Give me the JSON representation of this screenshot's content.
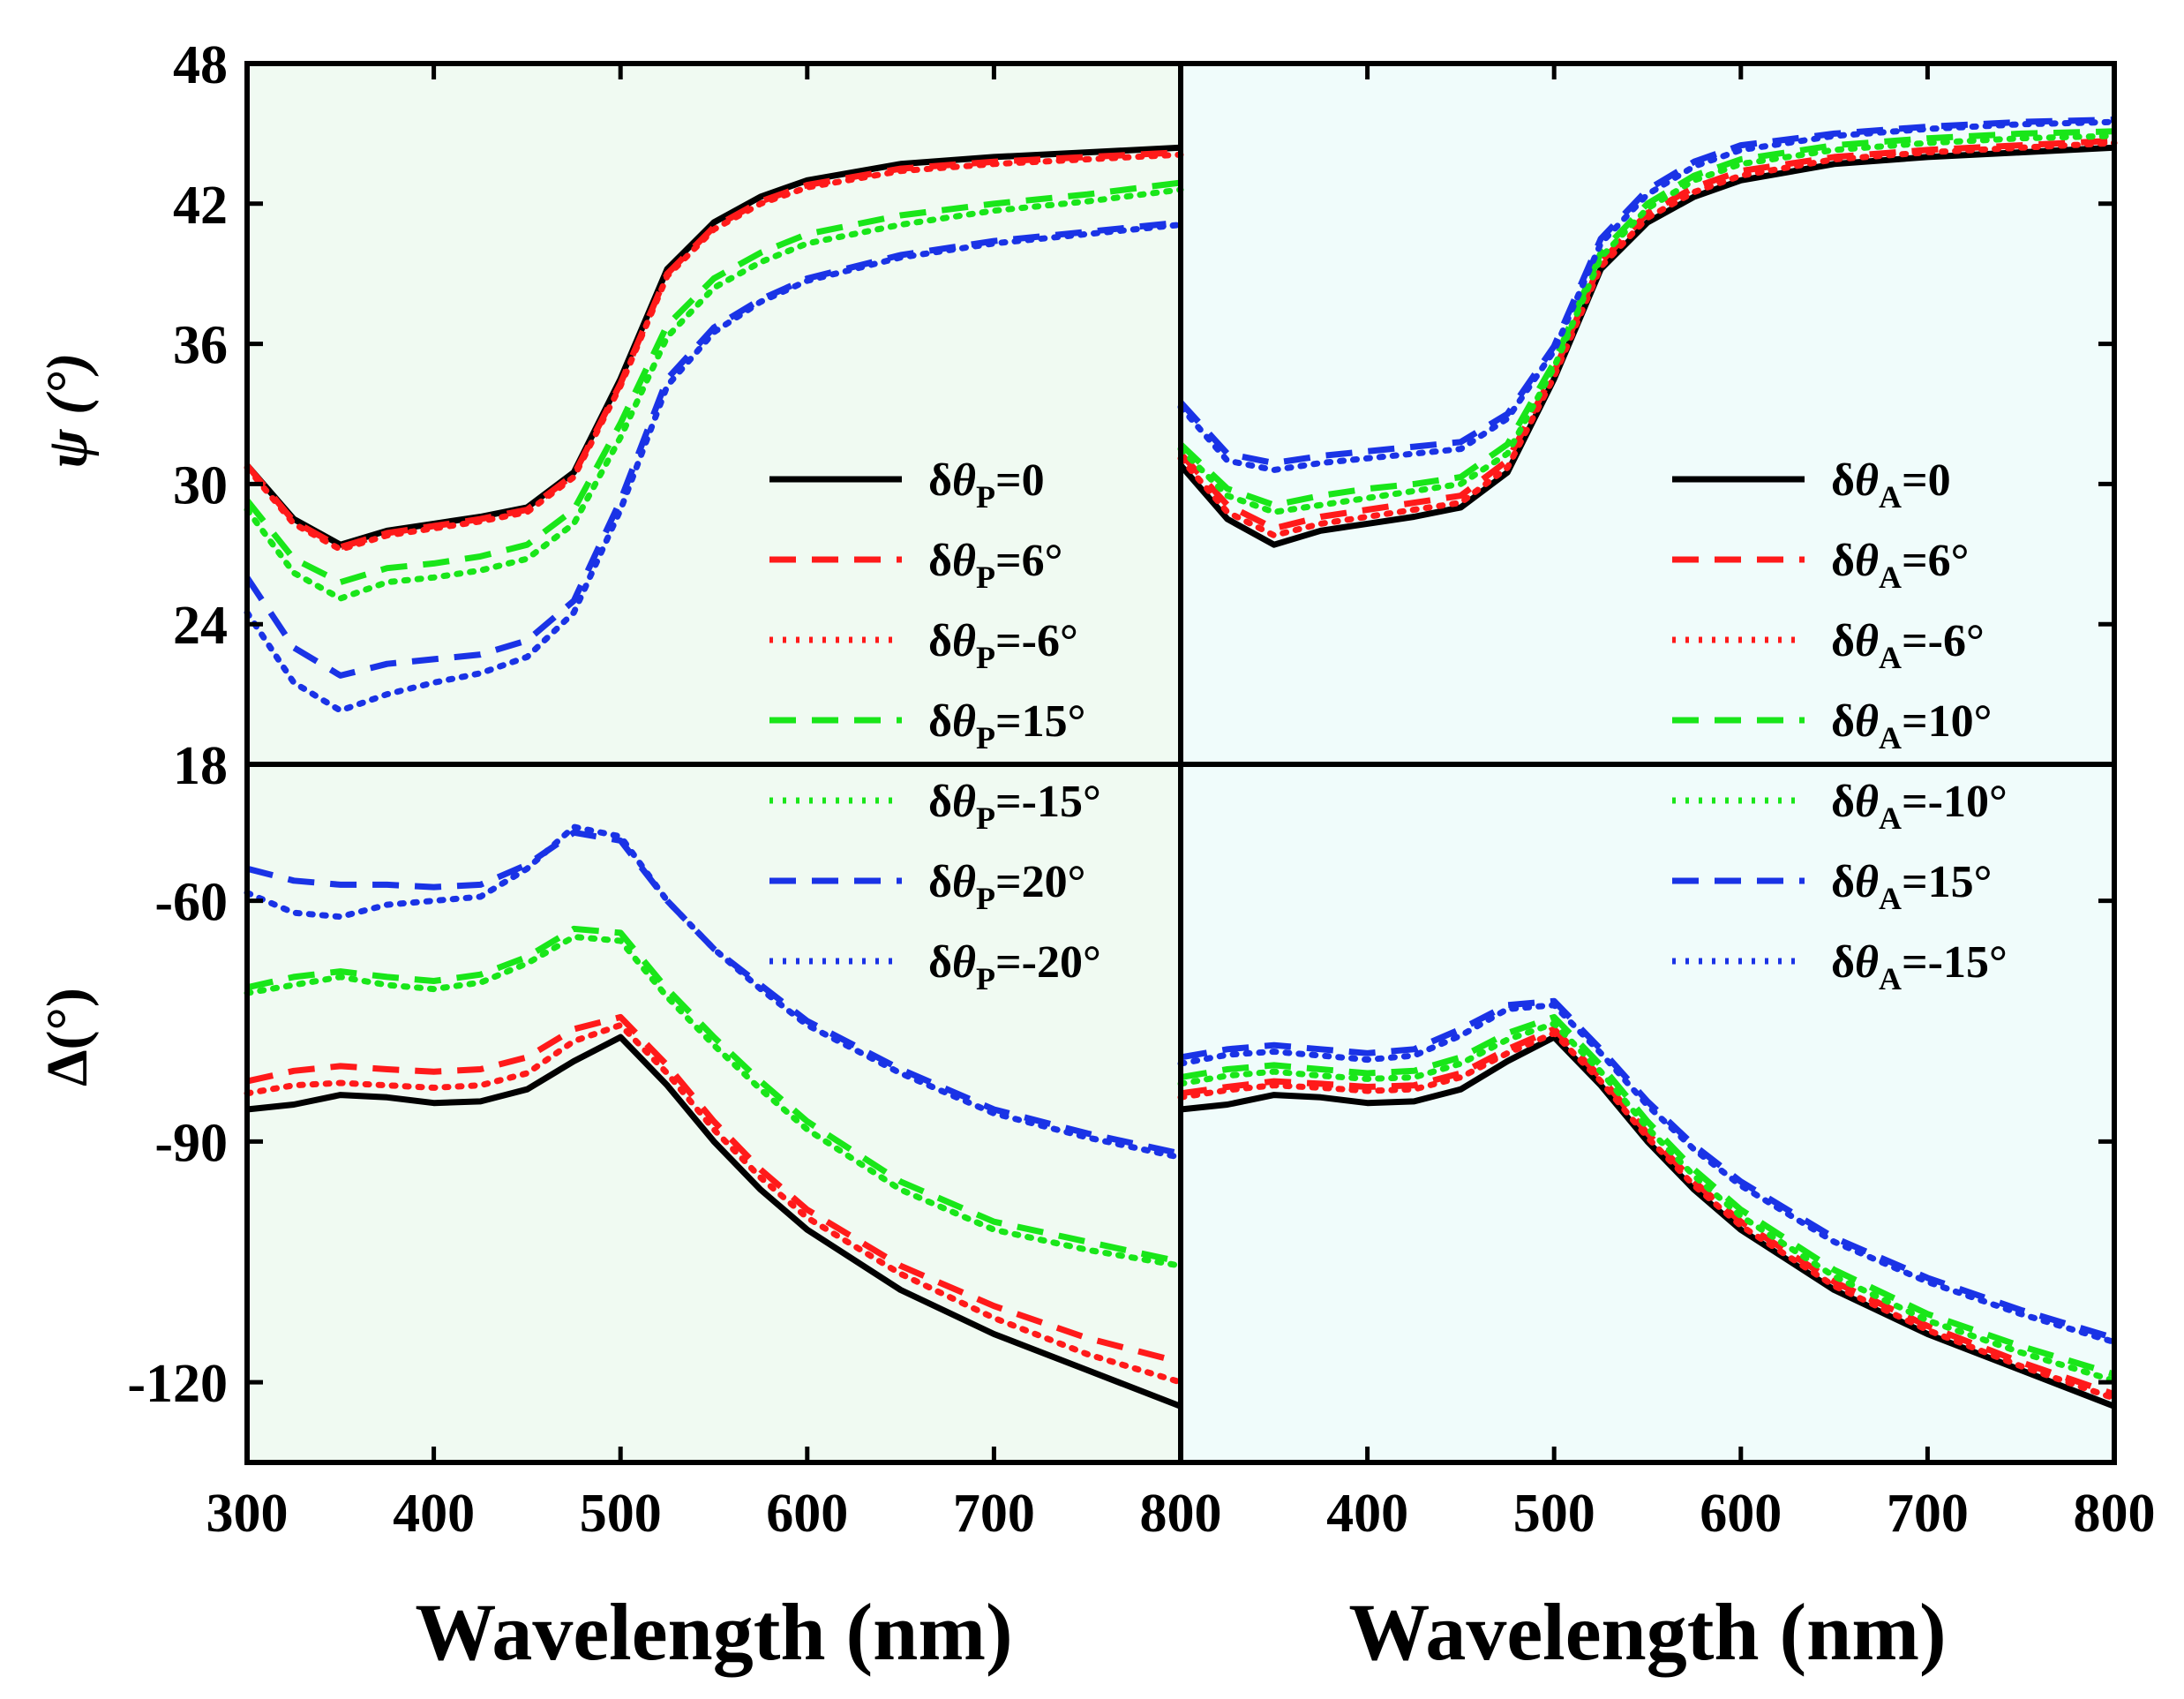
{
  "colors": {
    "black": "#000000",
    "red": "#ff1a1a",
    "green": "#19e619",
    "blue": "#1a33e6",
    "panel_left_bg": "#f0faf2",
    "panel_right_bg": "#f0fcfb"
  },
  "chart_data": [
    {
      "type": "line",
      "panel": "top-left",
      "ylabel": "ψ (°)",
      "xlim": [
        300,
        800
      ],
      "ylim": [
        18,
        48
      ],
      "yticks": [
        "18",
        "24",
        "30",
        "36",
        "42",
        "48"
      ],
      "x": [
        300,
        325,
        350,
        375,
        400,
        425,
        450,
        475,
        500,
        525,
        550,
        575,
        600,
        650,
        700,
        750,
        800
      ],
      "series": [
        {
          "name": "δθP=0",
          "color": "black",
          "style": "solid",
          "values": [
            30.8,
            28.5,
            27.4,
            28.0,
            28.3,
            28.6,
            29.0,
            30.5,
            34.5,
            39.2,
            41.2,
            42.3,
            43.0,
            43.7,
            44.0,
            44.2,
            44.4
          ]
        },
        {
          "name": "δθP=6°",
          "color": "red",
          "style": "dash",
          "values": [
            30.8,
            28.4,
            27.3,
            27.9,
            28.2,
            28.5,
            28.9,
            30.4,
            34.3,
            39.0,
            41.0,
            42.1,
            42.8,
            43.5,
            43.8,
            44.0,
            44.2
          ]
        },
        {
          "name": "δθP=-6°",
          "color": "red",
          "style": "dot",
          "values": [
            30.7,
            28.3,
            27.2,
            27.8,
            28.1,
            28.4,
            28.8,
            30.3,
            34.2,
            38.9,
            40.9,
            42.0,
            42.7,
            43.4,
            43.7,
            43.9,
            44.1
          ]
        },
        {
          "name": "δθP=15°",
          "color": "green",
          "style": "dash",
          "values": [
            29.3,
            26.8,
            25.8,
            26.4,
            26.6,
            26.9,
            27.4,
            28.9,
            32.6,
            36.8,
            38.8,
            39.9,
            40.7,
            41.5,
            42.0,
            42.4,
            42.9
          ]
        },
        {
          "name": "δθP=-15°",
          "color": "green",
          "style": "dot",
          "values": [
            28.9,
            26.2,
            25.1,
            25.8,
            26.0,
            26.3,
            26.8,
            28.3,
            32.0,
            36.3,
            38.4,
            39.5,
            40.3,
            41.1,
            41.7,
            42.1,
            42.6
          ]
        },
        {
          "name": "δθP=20°",
          "color": "blue",
          "style": "dash",
          "values": [
            26.0,
            23.0,
            21.8,
            22.3,
            22.5,
            22.7,
            23.3,
            25.0,
            29.3,
            34.5,
            36.7,
            37.9,
            38.8,
            39.8,
            40.4,
            40.8,
            41.2
          ]
        },
        {
          "name": "δθP=-20°",
          "color": "blue",
          "style": "dot",
          "values": [
            24.5,
            21.5,
            20.3,
            21.0,
            21.5,
            21.9,
            22.6,
            24.5,
            28.9,
            34.2,
            36.5,
            37.8,
            38.7,
            39.7,
            40.3,
            40.7,
            41.1
          ]
        }
      ]
    },
    {
      "type": "line",
      "panel": "bottom-left",
      "ylabel": "Δ(°)",
      "xlabel": "Wavelength (nm)",
      "xlim": [
        300,
        800
      ],
      "ylim": [
        -130,
        -43
      ],
      "yticks": [
        "-120",
        "-90",
        "-60"
      ],
      "xticks": [
        "300",
        "400",
        "500",
        "600",
        "700",
        "800"
      ],
      "x": [
        300,
        325,
        350,
        375,
        400,
        425,
        450,
        475,
        500,
        525,
        550,
        575,
        600,
        650,
        700,
        750,
        800
      ],
      "series": [
        {
          "name": "δθP=0",
          "color": "black",
          "style": "solid",
          "values": [
            -86.0,
            -85.4,
            -84.2,
            -84.5,
            -85.2,
            -85.0,
            -83.5,
            -80.0,
            -77.0,
            -83.0,
            -90.0,
            -96.0,
            -101.0,
            -108.5,
            -114.0,
            -118.5,
            -123.0
          ]
        },
        {
          "name": "δθP=6°",
          "color": "red",
          "style": "dash",
          "values": [
            -82.5,
            -81.2,
            -80.6,
            -81.0,
            -81.3,
            -81.0,
            -79.5,
            -76.0,
            -74.5,
            -80.5,
            -87.5,
            -93.5,
            -98.5,
            -105.5,
            -110.5,
            -114.5,
            -117.5
          ]
        },
        {
          "name": "δθP=-6°",
          "color": "red",
          "style": "dot",
          "values": [
            -84.0,
            -83.0,
            -82.7,
            -83.0,
            -83.3,
            -83.0,
            -81.5,
            -77.5,
            -75.5,
            -81.5,
            -88.5,
            -94.5,
            -99.5,
            -106.5,
            -112.0,
            -116.5,
            -120.0
          ]
        },
        {
          "name": "δθP=15°",
          "color": "green",
          "style": "dash",
          "values": [
            -70.8,
            -69.5,
            -68.8,
            -69.5,
            -70.0,
            -69.2,
            -67.0,
            -63.5,
            -64.0,
            -71.0,
            -77.0,
            -82.5,
            -87.5,
            -95.0,
            -100.0,
            -102.5,
            -105.0
          ]
        },
        {
          "name": "δθP=-15°",
          "color": "green",
          "style": "dot",
          "values": [
            -71.5,
            -70.5,
            -69.5,
            -70.5,
            -71.0,
            -70.2,
            -67.8,
            -64.5,
            -65.0,
            -72.0,
            -78.0,
            -83.5,
            -88.5,
            -96.0,
            -101.0,
            -103.5,
            -105.5
          ]
        },
        {
          "name": "δθP=20°",
          "color": "blue",
          "style": "dash",
          "values": [
            -56.0,
            -57.5,
            -58.0,
            -58.0,
            -58.3,
            -58.0,
            -55.5,
            -51.5,
            -52.5,
            -60.0,
            -66.0,
            -70.5,
            -75.0,
            -81.0,
            -86.0,
            -89.0,
            -91.5
          ]
        },
        {
          "name": "δθP=-20°",
          "color": "blue",
          "style": "dot",
          "values": [
            -59.0,
            -61.5,
            -62.0,
            -60.5,
            -60.0,
            -59.5,
            -56.0,
            -50.8,
            -52.0,
            -60.0,
            -66.0,
            -71.0,
            -75.5,
            -81.5,
            -86.5,
            -89.5,
            -92.0
          ]
        }
      ]
    },
    {
      "type": "line",
      "panel": "top-right",
      "xlim": [
        300,
        800
      ],
      "ylim": [
        18,
        48
      ],
      "x": [
        300,
        325,
        350,
        375,
        400,
        425,
        450,
        475,
        500,
        525,
        550,
        575,
        600,
        650,
        700,
        750,
        800
      ],
      "series": [
        {
          "name": "δθA=0",
          "color": "black",
          "style": "solid",
          "values": [
            30.8,
            28.5,
            27.4,
            28.0,
            28.3,
            28.6,
            29.0,
            30.5,
            34.5,
            39.2,
            41.2,
            42.3,
            43.0,
            43.7,
            44.0,
            44.2,
            44.4
          ]
        },
        {
          "name": "δθA=6°",
          "color": "red",
          "style": "dash",
          "values": [
            31.3,
            29.1,
            28.1,
            28.6,
            28.9,
            29.2,
            29.5,
            31.0,
            34.8,
            39.5,
            41.6,
            42.7,
            43.4,
            44.0,
            44.3,
            44.5,
            44.7
          ]
        },
        {
          "name": "δθA=-6°",
          "color": "red",
          "style": "dot",
          "values": [
            31.1,
            28.8,
            27.8,
            28.3,
            28.6,
            28.9,
            29.2,
            30.7,
            34.6,
            39.3,
            41.4,
            42.5,
            43.2,
            43.9,
            44.2,
            44.4,
            44.6
          ]
        },
        {
          "name": "δθA=10°",
          "color": "green",
          "style": "dash",
          "values": [
            31.7,
            29.8,
            29.1,
            29.5,
            29.8,
            30.0,
            30.3,
            31.7,
            35.2,
            39.9,
            42.0,
            43.2,
            43.9,
            44.5,
            44.8,
            45.0,
            45.1
          ]
        },
        {
          "name": "δθA=-10°",
          "color": "green",
          "style": "dot",
          "values": [
            31.5,
            29.5,
            28.8,
            29.1,
            29.4,
            29.7,
            30.0,
            31.3,
            35.0,
            39.7,
            41.8,
            43.0,
            43.7,
            44.3,
            44.6,
            44.8,
            44.9
          ]
        },
        {
          "name": "δθA=15°",
          "color": "blue",
          "style": "dash",
          "values": [
            33.5,
            31.3,
            30.9,
            31.2,
            31.4,
            31.6,
            31.8,
            33.0,
            35.9,
            40.5,
            42.6,
            43.8,
            44.5,
            45.0,
            45.3,
            45.5,
            45.6
          ]
        },
        {
          "name": "δθA=-15°",
          "color": "blue",
          "style": "dot",
          "values": [
            33.3,
            31.0,
            30.6,
            30.9,
            31.1,
            31.3,
            31.5,
            32.8,
            35.7,
            40.3,
            42.4,
            43.6,
            44.3,
            44.9,
            45.2,
            45.4,
            45.5
          ]
        }
      ]
    },
    {
      "type": "line",
      "panel": "bottom-right",
      "xlabel": "Wavelength (nm)",
      "xlim": [
        300,
        800
      ],
      "ylim": [
        -130,
        -43
      ],
      "xticks": [
        "400",
        "500",
        "600",
        "700",
        "800"
      ],
      "x": [
        300,
        325,
        350,
        375,
        400,
        425,
        450,
        475,
        500,
        525,
        550,
        575,
        600,
        650,
        700,
        750,
        800
      ],
      "series": [
        {
          "name": "δθA=0",
          "color": "black",
          "style": "solid",
          "values": [
            -86.0,
            -85.4,
            -84.2,
            -84.5,
            -85.2,
            -85.0,
            -83.5,
            -80.0,
            -77.0,
            -83.0,
            -90.0,
            -96.0,
            -101.0,
            -108.5,
            -114.0,
            -118.5,
            -123.0
          ]
        },
        {
          "name": "δθA=6°",
          "color": "red",
          "style": "dash",
          "values": [
            -84.0,
            -83.2,
            -82.5,
            -82.8,
            -83.2,
            -83.0,
            -81.5,
            -78.5,
            -76.0,
            -82.0,
            -89.0,
            -95.0,
            -100.0,
            -107.5,
            -113.0,
            -117.5,
            -121.5
          ]
        },
        {
          "name": "δθA=-6°",
          "color": "red",
          "style": "dot",
          "values": [
            -84.5,
            -83.6,
            -83.0,
            -83.3,
            -83.7,
            -83.5,
            -82.0,
            -79.0,
            -76.5,
            -82.5,
            -89.5,
            -95.5,
            -100.5,
            -108.0,
            -113.5,
            -118.0,
            -122.0
          ]
        },
        {
          "name": "δθA=10°",
          "color": "green",
          "style": "dash",
          "values": [
            -82.0,
            -81.0,
            -80.5,
            -81.0,
            -81.5,
            -81.2,
            -79.5,
            -76.5,
            -74.5,
            -80.5,
            -87.5,
            -93.5,
            -98.5,
            -106.0,
            -111.5,
            -115.5,
            -119.0
          ]
        },
        {
          "name": "δθA=-10°",
          "color": "green",
          "style": "dot",
          "values": [
            -82.8,
            -81.8,
            -81.3,
            -81.8,
            -82.2,
            -82.0,
            -80.3,
            -77.3,
            -75.3,
            -81.3,
            -88.3,
            -94.3,
            -99.3,
            -106.8,
            -112.3,
            -116.3,
            -119.8
          ]
        },
        {
          "name": "δθA=15°",
          "color": "blue",
          "style": "dash",
          "values": [
            -79.5,
            -78.5,
            -78.0,
            -78.5,
            -79.0,
            -78.5,
            -76.0,
            -73.0,
            -72.5,
            -78.5,
            -85.0,
            -90.5,
            -95.0,
            -102.0,
            -107.0,
            -111.0,
            -114.5
          ]
        },
        {
          "name": "δθA=-15°",
          "color": "blue",
          "style": "dot",
          "values": [
            -80.3,
            -79.2,
            -78.8,
            -79.3,
            -79.8,
            -79.3,
            -76.8,
            -73.5,
            -73.0,
            -79.0,
            -85.5,
            -91.0,
            -95.5,
            -102.5,
            -107.5,
            -111.5,
            -115.0
          ]
        }
      ]
    }
  ],
  "legend_left": [
    {
      "prefix": "δθ",
      "sub": "P",
      "suffix": "=0",
      "color": "black",
      "style": "solid"
    },
    {
      "prefix": "δθ",
      "sub": "P",
      "suffix": "=6°",
      "color": "red",
      "style": "dash"
    },
    {
      "prefix": "δθ",
      "sub": "P",
      "suffix": "=-6°",
      "color": "red",
      "style": "dot"
    },
    {
      "prefix": "δθ",
      "sub": "P",
      "suffix": "=15°",
      "color": "green",
      "style": "dash"
    },
    {
      "prefix": "δθ",
      "sub": "P",
      "suffix": "=-15°",
      "color": "green",
      "style": "dot"
    },
    {
      "prefix": "δθ",
      "sub": "P",
      "suffix": "=20°",
      "color": "blue",
      "style": "dash"
    },
    {
      "prefix": "δθ",
      "sub": "P",
      "suffix": "=-20°",
      "color": "blue",
      "style": "dot"
    }
  ],
  "legend_right": [
    {
      "prefix": "δθ",
      "sub": "A",
      "suffix": "=0",
      "color": "black",
      "style": "solid"
    },
    {
      "prefix": "δθ",
      "sub": "A",
      "suffix": "=6°",
      "color": "red",
      "style": "dash"
    },
    {
      "prefix": "δθ",
      "sub": "A",
      "suffix": "=-6°",
      "color": "red",
      "style": "dot"
    },
    {
      "prefix": "δθ",
      "sub": "A",
      "suffix": "=10°",
      "color": "green",
      "style": "dash"
    },
    {
      "prefix": "δθ",
      "sub": "A",
      "suffix": "=-10°",
      "color": "green",
      "style": "dot"
    },
    {
      "prefix": "δθ",
      "sub": "A",
      "suffix": "=15°",
      "color": "blue",
      "style": "dash"
    },
    {
      "prefix": "δθ",
      "sub": "A",
      "suffix": "=-15°",
      "color": "blue",
      "style": "dot"
    }
  ],
  "xlabel_left": "Wavelength (nm)",
  "xlabel_right": "Wavelength (nm)"
}
